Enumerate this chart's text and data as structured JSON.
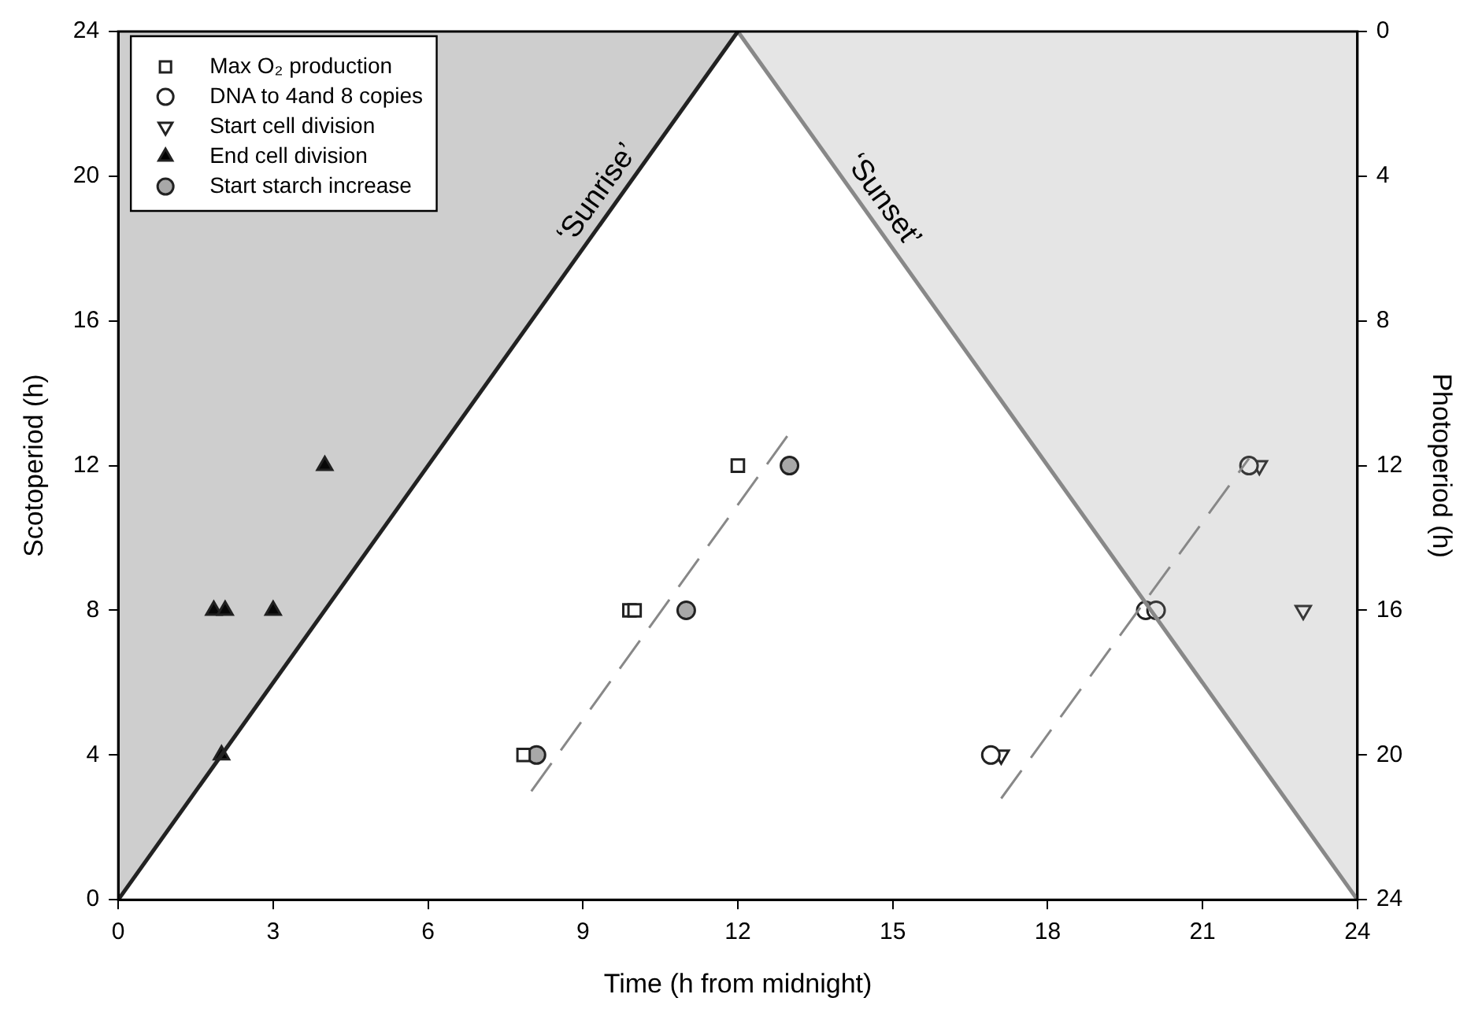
{
  "chart_data": {
    "type": "scatter",
    "xlabel": "Time (h from midnight)",
    "ylabel": "Scotoperiod (h)",
    "y2label": "Photoperiod (h)",
    "xlim": [
      0,
      24
    ],
    "xticks": [
      0,
      3,
      6,
      9,
      12,
      15,
      18,
      21,
      24
    ],
    "ylim": [
      0,
      24
    ],
    "yticks": [
      0,
      4,
      8,
      12,
      16,
      20,
      24
    ],
    "y2lim": [
      24,
      0
    ],
    "y2ticks": [
      0,
      4,
      8,
      12,
      16,
      20,
      24
    ],
    "grid": false,
    "legend": "top left",
    "annotations": [
      {
        "text": "‘Sunrise’",
        "x": 9.6,
        "y": 19.2
      },
      {
        "text": "‘Sunset’",
        "x": 14.5,
        "y": 19
      }
    ],
    "series": [
      {
        "type": "area",
        "color": "#222222",
        "x": [
          0,
          12
        ],
        "values": [
          0,
          24
        ]
      },
      {
        "type": "area",
        "color": "#888888",
        "x": [
          12,
          24
        ],
        "values": [
          24,
          0
        ]
      },
      {
        "type": "line",
        "color": "#888888",
        "line_style": "dashed",
        "x": [
          8,
          13
        ],
        "values": [
          3,
          12.9
        ]
      },
      {
        "type": "line",
        "color": "#888888",
        "line_style": "dashed",
        "x": [
          17.1,
          21.9
        ],
        "values": [
          2.8,
          12.2
        ]
      },
      {
        "name": "Max O₂ production",
        "marker": "square",
        "color": "#ffffff",
        "x": [
          7.85,
          9.9,
          10,
          12
        ],
        "values": [
          4,
          8,
          8,
          12
        ]
      },
      {
        "name": "DNA to 4and 8 copies",
        "marker": "circle",
        "color": "#ffffff",
        "x": [
          16.9,
          19.9,
          20.1,
          21.9
        ],
        "values": [
          4,
          8,
          8,
          12
        ]
      },
      {
        "name": "Start cell division",
        "marker": "triangle-down",
        "color": "#ffffff",
        "x": [
          17.1,
          22.95,
          22.1
        ],
        "values": [
          4,
          8,
          12
        ]
      },
      {
        "name": "End cell division",
        "marker": "triangle",
        "color": "#000000",
        "x": [
          2,
          1.85,
          2.07,
          3,
          4
        ],
        "values": [
          4,
          8,
          8,
          8,
          12
        ]
      },
      {
        "name": "Start starch increase",
        "marker": "circle",
        "color": "#a8a8a8",
        "x": [
          8.1,
          11,
          13
        ],
        "values": [
          4,
          8,
          12
        ]
      }
    ]
  }
}
